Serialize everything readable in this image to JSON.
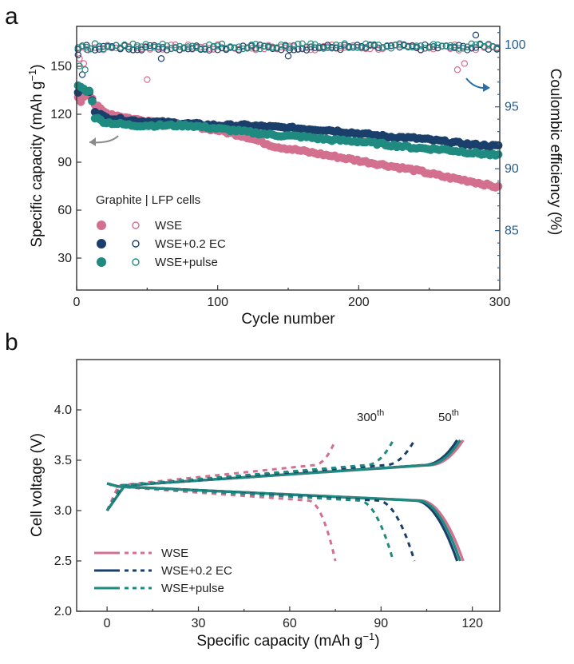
{
  "colors": {
    "wse": "#d4708f",
    "ec": "#1b3f6b",
    "pulse": "#1f8a80",
    "right_axis": "#2a5e8c"
  },
  "chart_data": [
    {
      "panel": "a",
      "type": "scatter",
      "xlabel": "Cycle number",
      "ylabel": "Specific capacity (mAh g",
      "ylabel_sup": "−1",
      "ylabel_end": ")",
      "y2label": "Coulombic efficiency (%)",
      "xlim": [
        0,
        300
      ],
      "ylim": [
        10,
        175
      ],
      "y2lim": [
        80.2,
        101.5
      ],
      "xticks": [
        "0",
        "100",
        "200",
        "300"
      ],
      "yticks": [
        "30",
        "60",
        "90",
        "120",
        "150"
      ],
      "y2ticks": [
        "85",
        "90",
        "95",
        "100"
      ],
      "legend_title": "Graphite | LFP cells",
      "legend": [
        "WSE",
        "WSE+0.2 EC",
        "WSE+pulse"
      ],
      "capacity_series": [
        {
          "name": "WSE",
          "color": "wse",
          "points": [
            [
              1,
              130
            ],
            [
              3,
              128
            ],
            [
              6,
              133
            ],
            [
              10,
              132
            ],
            [
              13,
              126
            ],
            [
              20,
              121
            ],
            [
              40,
              117
            ],
            [
              60,
              115
            ],
            [
              80,
              113
            ],
            [
              100,
              110
            ],
            [
              120,
              106
            ],
            [
              140,
              100
            ],
            [
              160,
              97
            ],
            [
              180,
              94
            ],
            [
              200,
              91
            ],
            [
              220,
              88
            ],
            [
              240,
              85
            ],
            [
              260,
              81
            ],
            [
              280,
              78
            ],
            [
              300,
              74
            ]
          ]
        },
        {
          "name": "WSE+0.2 EC",
          "color": "ec",
          "points": [
            [
              1,
              134
            ],
            [
              3,
              136
            ],
            [
              6,
              135
            ],
            [
              10,
              133
            ],
            [
              13,
              122
            ],
            [
              20,
              118
            ],
            [
              40,
              116
            ],
            [
              60,
              115
            ],
            [
              80,
              114
            ],
            [
              100,
              113
            ],
            [
              120,
              113
            ],
            [
              140,
              112
            ],
            [
              160,
              111
            ],
            [
              180,
              110
            ],
            [
              200,
              108
            ],
            [
              220,
              106
            ],
            [
              240,
              105
            ],
            [
              260,
              103
            ],
            [
              280,
              101
            ],
            [
              300,
              100
            ]
          ]
        },
        {
          "name": "WSE+pulse",
          "color": "pulse",
          "points": [
            [
              1,
              138
            ],
            [
              3,
              137
            ],
            [
              6,
              135
            ],
            [
              10,
              134
            ],
            [
              13,
              118
            ],
            [
              20,
              115
            ],
            [
              40,
              113
            ],
            [
              60,
              113
            ],
            [
              80,
              113
            ],
            [
              100,
              111
            ],
            [
              120,
              109
            ],
            [
              140,
              107
            ],
            [
              160,
              106
            ],
            [
              180,
              104
            ],
            [
              200,
              103
            ],
            [
              220,
              101
            ],
            [
              240,
              99
            ],
            [
              260,
              98
            ],
            [
              280,
              96
            ],
            [
              300,
              94
            ]
          ]
        }
      ],
      "ce_series": [
        {
          "name": "WSE",
          "color": "wse",
          "base": 99.8,
          "outliers": [
            [
              2,
              98.9
            ],
            [
              5,
              98.5
            ],
            [
              50,
              97.2
            ],
            [
              270,
              98.0
            ],
            [
              275,
              98.5
            ]
          ]
        },
        {
          "name": "WSE+0.2 EC",
          "color": "ec",
          "base": 99.8,
          "outliers": [
            [
              1,
              99.2
            ],
            [
              4,
              97.6
            ],
            [
              60,
              98.9
            ],
            [
              150,
              99.1
            ],
            [
              283,
              100.8
            ]
          ]
        },
        {
          "name": "WSE+pulse",
          "color": "pulse",
          "base": 99.9,
          "outliers": [
            [
              2,
              98.3
            ],
            [
              6,
              98.0
            ],
            [
              8,
              99.6
            ]
          ]
        }
      ]
    },
    {
      "panel": "b",
      "type": "line",
      "xlabel": "Specific capacity (mAh g",
      "xlabel_sup": "−1",
      "xlabel_end": ")",
      "ylabel": "Cell voltage (V)",
      "xlim": [
        -10,
        129
      ],
      "ylim": [
        2.0,
        4.5
      ],
      "xticks": [
        "0",
        "30",
        "60",
        "90",
        "120"
      ],
      "yticks": [
        "2.0",
        "2.5",
        "3.0",
        "3.5",
        "4.0"
      ],
      "annot_300": "300",
      "annot_50": "50",
      "annot_sup": "th",
      "legend": [
        "WSE",
        "WSE+0.2 EC",
        "WSE+pulse"
      ],
      "cycles": [
        {
          "name": "WSE",
          "color": "wse",
          "cycle": 50,
          "cap": 117
        },
        {
          "name": "WSE+0.2 EC",
          "color": "ec",
          "cycle": 50,
          "cap": 115
        },
        {
          "name": "WSE+pulse",
          "color": "pulse",
          "cycle": 50,
          "cap": 116
        },
        {
          "name": "WSE",
          "color": "wse",
          "cycle": 300,
          "cap": 75
        },
        {
          "name": "WSE+0.2 EC",
          "color": "ec",
          "cycle": 300,
          "cap": 101
        },
        {
          "name": "WSE+pulse",
          "color": "pulse",
          "cycle": 300,
          "cap": 94
        }
      ]
    }
  ]
}
